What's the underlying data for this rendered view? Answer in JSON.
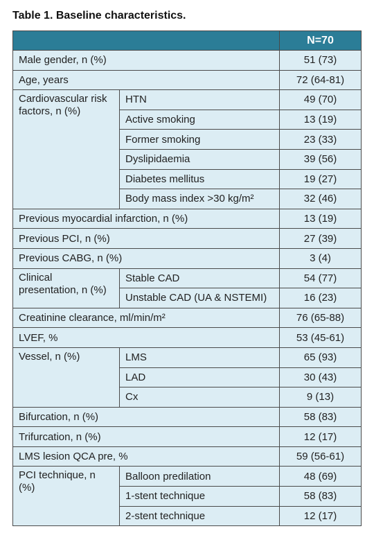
{
  "title": "Table 1. Baseline characteristics.",
  "table": {
    "header": "N=70",
    "rows": [
      {
        "label": "Male gender, n (%)",
        "value": "51 (73)"
      },
      {
        "label": "Age, years",
        "value": "72 (64-81)"
      },
      {
        "label": "Cardiovascular risk factors, n (%)",
        "items": [
          {
            "label": "HTN",
            "value": "49 (70)"
          },
          {
            "label": "Active smoking",
            "value": "13 (19)"
          },
          {
            "label": "Former smoking",
            "value": "23 (33)"
          },
          {
            "label": "Dyslipidaemia",
            "value": "39 (56)"
          },
          {
            "label": "Diabetes mellitus",
            "value": "19 (27)"
          },
          {
            "label": "Body mass index >30 kg/m²",
            "value": "32 (46)"
          }
        ]
      },
      {
        "label": "Previous myocardial infarction, n (%)",
        "value": "13 (19)"
      },
      {
        "label": "Previous PCI, n (%)",
        "value": "27 (39)"
      },
      {
        "label": "Previous CABG, n (%)",
        "value": "3 (4)"
      },
      {
        "label": "Clinical presentation, n (%)",
        "items": [
          {
            "label": "Stable CAD",
            "value": "54 (77)"
          },
          {
            "label": "Unstable CAD (UA & NSTEMI)",
            "value": "16 (23)"
          }
        ]
      },
      {
        "label": "Creatinine clearance, ml/min/m²",
        "value": "76 (65-88)"
      },
      {
        "label": "LVEF, %",
        "value": "53 (45-61)"
      },
      {
        "label": "Vessel, n (%)",
        "items": [
          {
            "label": "LMS",
            "value": "65 (93)"
          },
          {
            "label": "LAD",
            "value": "30 (43)"
          },
          {
            "label": "Cx",
            "value": "9 (13)"
          }
        ]
      },
      {
        "label": "Bifurcation, n (%)",
        "value": "58 (83)"
      },
      {
        "label": "Trifurcation, n (%)",
        "value": "12 (17)"
      },
      {
        "label": "LMS lesion QCA pre, %",
        "value": "59 (56-61)"
      },
      {
        "label": "PCI technique, n (%)",
        "items": [
          {
            "label": "Balloon predilation",
            "value": "48 (69)"
          },
          {
            "label": "1-stent technique",
            "value": "58 (83)"
          },
          {
            "label": "2-stent technique",
            "value": "12 (17)"
          }
        ]
      }
    ]
  }
}
